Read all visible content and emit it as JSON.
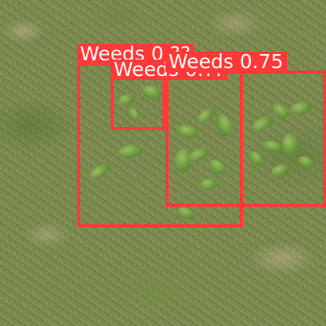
{
  "detections": [
    {
      "class": "Weeds",
      "score": "0.??",
      "text": "Weeds 0.??"
    },
    {
      "class": "Weeds",
      "score": "0.??",
      "text": "Weeds 0.??"
    },
    {
      "class": "Weeds",
      "score": "0.75",
      "text": "Weeds 0.75"
    }
  ],
  "colors": {
    "box": "#ff3838",
    "label_text": "#ffffff"
  }
}
